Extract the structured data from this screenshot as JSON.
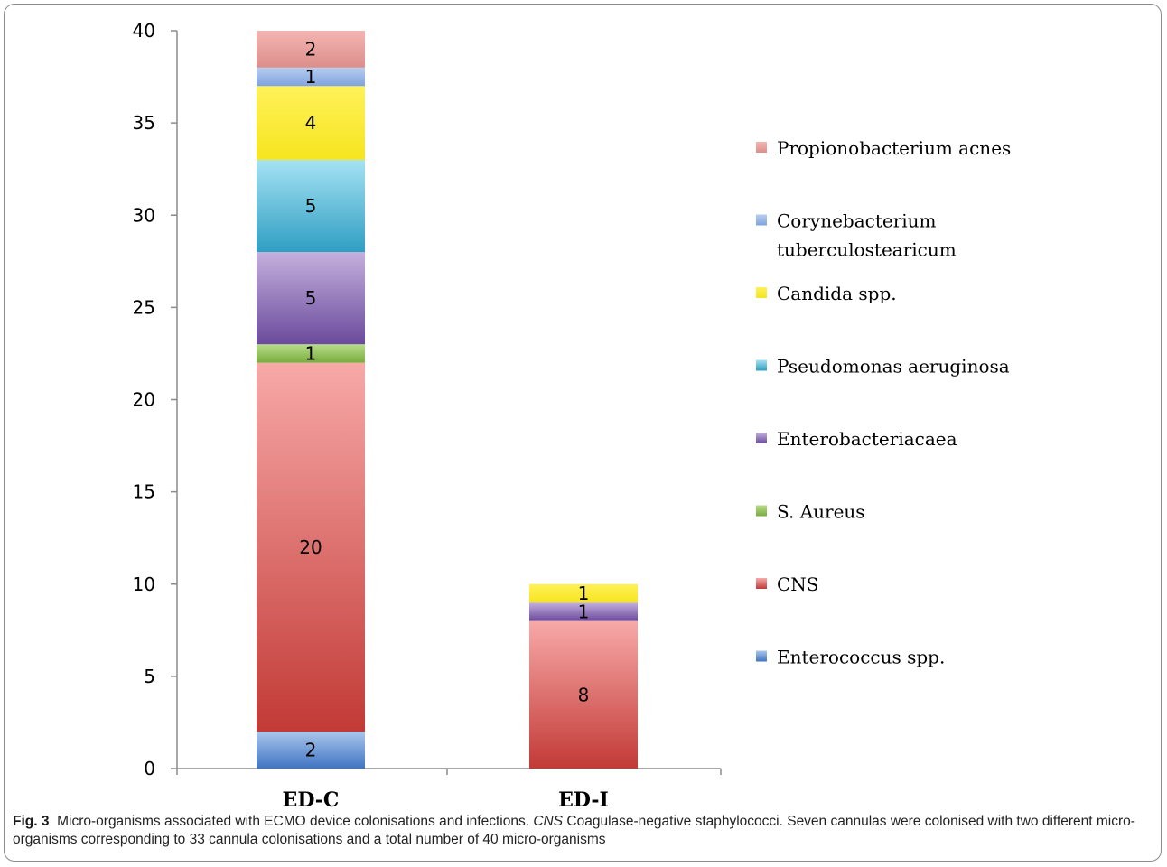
{
  "chart_data": {
    "type": "bar",
    "stacked": true,
    "categories": [
      "ED-C",
      "ED-I"
    ],
    "ylim": [
      0,
      40
    ],
    "yticks": [
      0,
      5,
      10,
      15,
      20,
      25,
      30,
      35,
      40
    ],
    "grid": false,
    "legend_position": "right",
    "series": [
      {
        "name": "Enterococcus spp.",
        "values": [
          2,
          0
        ],
        "colors": [
          "#a9c6ec",
          "#3f74c2"
        ]
      },
      {
        "name": "CNS",
        "values": [
          20,
          8
        ],
        "colors": [
          "#f7a9a8",
          "#c23a36"
        ]
      },
      {
        "name": "S. Aureus",
        "values": [
          1,
          0
        ],
        "colors": [
          "#b8dc8a",
          "#78ad3d"
        ]
      },
      {
        "name": "Enterobacteriacaea",
        "values": [
          5,
          1
        ],
        "colors": [
          "#c4b0dd",
          "#6a4a9c"
        ]
      },
      {
        "name": "Pseudomonas aeruginosa",
        "values": [
          5,
          0
        ],
        "colors": [
          "#a6e2f4",
          "#2f9ec2"
        ]
      },
      {
        "name": "Candida spp.",
        "values": [
          4,
          1
        ],
        "colors": [
          "#fff15a",
          "#f6e51e"
        ]
      },
      {
        "name": "Corynebacterium tuberculostearicum",
        "values": [
          1,
          0
        ],
        "colors": [
          "#b7cdf0",
          "#7fa3de"
        ]
      },
      {
        "name": "Propionobacterium acnes",
        "values": [
          2,
          0
        ],
        "colors": [
          "#f4b5b2",
          "#dc8e8a"
        ]
      }
    ]
  },
  "caption": {
    "fig_label": "Fig. 3",
    "text_1": "Micro-organisms associated with ECMO device colonisations and infections.",
    "abbr": "CNS",
    "text_2": "Coagulase-negative staphylococci. Seven cannulas were colonised with two different micro-organisms corresponding to 33 cannula colonisations and a total number of 40 micro-organisms"
  }
}
